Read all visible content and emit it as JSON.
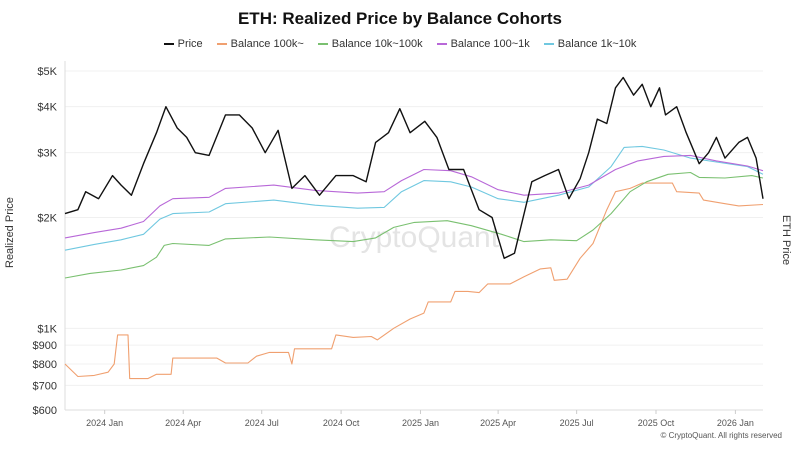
{
  "chart_data": {
    "type": "line",
    "title": "ETH: Realized Price by Balance Cohorts",
    "ylabel": "Realized Price",
    "y2label": "ETH Price",
    "yscale": "log",
    "ylim": [
      600,
      5000
    ],
    "yticks": [
      "$600",
      "$700",
      "$800",
      "$900",
      "$1K",
      "$2K",
      "$3K",
      "$4K",
      "$5K"
    ],
    "ytick_values": [
      600,
      700,
      800,
      900,
      1000,
      2000,
      3000,
      4000,
      5000
    ],
    "xticks": [
      "2024 Jan",
      "2024 Apr",
      "2024 Jul",
      "2024 Oct",
      "2025 Jan",
      "2025 Apr",
      "2025 Jul",
      "2025 Oct",
      "2026 Jan"
    ],
    "xtick_dates": [
      "2024-01-01",
      "2024-04-01",
      "2024-07-01",
      "2024-10-01",
      "2025-01-01",
      "2025-04-01",
      "2025-07-01",
      "2025-10-01",
      "2026-01-01"
    ],
    "xlim": [
      "2023-11-16",
      "2026-02-02"
    ],
    "grid": true,
    "legend_position": "top",
    "watermark": "CryptoQuant",
    "credit": "© CryptoQuant. All rights reserved",
    "series": [
      {
        "name": "Price",
        "color": "#111111",
        "points": [
          [
            "2023-11-16",
            2050
          ],
          [
            "2023-12-01",
            2100
          ],
          [
            "2023-12-10",
            2350
          ],
          [
            "2023-12-25",
            2250
          ],
          [
            "2024-01-10",
            2600
          ],
          [
            "2024-01-20",
            2450
          ],
          [
            "2024-02-01",
            2300
          ],
          [
            "2024-02-15",
            2800
          ],
          [
            "2024-03-01",
            3400
          ],
          [
            "2024-03-12",
            4000
          ],
          [
            "2024-03-25",
            3500
          ],
          [
            "2024-04-05",
            3300
          ],
          [
            "2024-04-15",
            3000
          ],
          [
            "2024-05-01",
            2950
          ],
          [
            "2024-05-20",
            3800
          ],
          [
            "2024-06-05",
            3800
          ],
          [
            "2024-06-20",
            3500
          ],
          [
            "2024-07-05",
            3000
          ],
          [
            "2024-07-20",
            3450
          ],
          [
            "2024-08-05",
            2400
          ],
          [
            "2024-08-20",
            2600
          ],
          [
            "2024-09-06",
            2300
          ],
          [
            "2024-09-25",
            2600
          ],
          [
            "2024-10-15",
            2600
          ],
          [
            "2024-10-30",
            2500
          ],
          [
            "2024-11-10",
            3200
          ],
          [
            "2024-11-25",
            3400
          ],
          [
            "2024-12-08",
            3950
          ],
          [
            "2024-12-20",
            3400
          ],
          [
            "2025-01-06",
            3650
          ],
          [
            "2025-01-20",
            3300
          ],
          [
            "2025-02-03",
            2700
          ],
          [
            "2025-02-20",
            2700
          ],
          [
            "2025-03-10",
            2100
          ],
          [
            "2025-03-25",
            2000
          ],
          [
            "2025-04-08",
            1550
          ],
          [
            "2025-04-20",
            1600
          ],
          [
            "2025-05-10",
            2500
          ],
          [
            "2025-05-25",
            2600
          ],
          [
            "2025-06-10",
            2700
          ],
          [
            "2025-06-22",
            2250
          ],
          [
            "2025-07-05",
            2550
          ],
          [
            "2025-07-15",
            3000
          ],
          [
            "2025-07-25",
            3700
          ],
          [
            "2025-08-05",
            3600
          ],
          [
            "2025-08-15",
            4500
          ],
          [
            "2025-08-24",
            4800
          ],
          [
            "2025-09-05",
            4300
          ],
          [
            "2025-09-15",
            4600
          ],
          [
            "2025-09-25",
            4000
          ],
          [
            "2025-10-05",
            4500
          ],
          [
            "2025-10-12",
            3800
          ],
          [
            "2025-10-25",
            4000
          ],
          [
            "2025-11-05",
            3400
          ],
          [
            "2025-11-20",
            2800
          ],
          [
            "2025-12-01",
            3000
          ],
          [
            "2025-12-10",
            3300
          ],
          [
            "2025-12-20",
            2900
          ],
          [
            "2026-01-05",
            3200
          ],
          [
            "2026-01-15",
            3300
          ],
          [
            "2026-01-25",
            2900
          ],
          [
            "2026-02-02",
            2250
          ]
        ]
      },
      {
        "name": "Balance 100k~",
        "color": "#f0a070",
        "points": [
          [
            "2023-11-16",
            800
          ],
          [
            "2023-12-01",
            740
          ],
          [
            "2023-12-20",
            745
          ],
          [
            "2024-01-05",
            760
          ],
          [
            "2024-01-12",
            800
          ],
          [
            "2024-01-16",
            960
          ],
          [
            "2024-01-28",
            960
          ],
          [
            "2024-01-30",
            730
          ],
          [
            "2024-02-20",
            730
          ],
          [
            "2024-03-01",
            750
          ],
          [
            "2024-03-18",
            750
          ],
          [
            "2024-03-20",
            830
          ],
          [
            "2024-05-10",
            830
          ],
          [
            "2024-05-20",
            805
          ],
          [
            "2024-06-15",
            805
          ],
          [
            "2024-06-25",
            840
          ],
          [
            "2024-07-10",
            860
          ],
          [
            "2024-08-01",
            860
          ],
          [
            "2024-08-05",
            800
          ],
          [
            "2024-08-08",
            880
          ],
          [
            "2024-09-20",
            880
          ],
          [
            "2024-09-25",
            960
          ],
          [
            "2024-10-15",
            945
          ],
          [
            "2024-11-05",
            950
          ],
          [
            "2024-11-12",
            930
          ],
          [
            "2024-12-01",
            1000
          ],
          [
            "2024-12-20",
            1060
          ],
          [
            "2025-01-05",
            1100
          ],
          [
            "2025-01-10",
            1180
          ],
          [
            "2025-02-05",
            1180
          ],
          [
            "2025-02-10",
            1260
          ],
          [
            "2025-02-25",
            1260
          ],
          [
            "2025-03-10",
            1250
          ],
          [
            "2025-03-20",
            1320
          ],
          [
            "2025-04-15",
            1320
          ],
          [
            "2025-05-01",
            1380
          ],
          [
            "2025-05-20",
            1450
          ],
          [
            "2025-06-01",
            1460
          ],
          [
            "2025-06-05",
            1350
          ],
          [
            "2025-06-20",
            1360
          ],
          [
            "2025-07-05",
            1550
          ],
          [
            "2025-07-20",
            1700
          ],
          [
            "2025-08-05",
            2100
          ],
          [
            "2025-08-15",
            2350
          ],
          [
            "2025-09-01",
            2400
          ],
          [
            "2025-09-15",
            2480
          ],
          [
            "2025-10-20",
            2480
          ],
          [
            "2025-10-25",
            2350
          ],
          [
            "2025-11-20",
            2330
          ],
          [
            "2025-11-25",
            2230
          ],
          [
            "2025-12-20",
            2180
          ],
          [
            "2026-01-05",
            2150
          ],
          [
            "2026-02-02",
            2170
          ]
        ]
      },
      {
        "name": "Balance 10k~100k",
        "color": "#7ac070",
        "points": [
          [
            "2023-11-16",
            1370
          ],
          [
            "2023-12-15",
            1410
          ],
          [
            "2024-01-20",
            1440
          ],
          [
            "2024-02-15",
            1480
          ],
          [
            "2024-03-01",
            1560
          ],
          [
            "2024-03-10",
            1680
          ],
          [
            "2024-03-20",
            1700
          ],
          [
            "2024-05-01",
            1680
          ],
          [
            "2024-05-20",
            1750
          ],
          [
            "2024-07-10",
            1770
          ],
          [
            "2024-09-01",
            1740
          ],
          [
            "2024-10-15",
            1720
          ],
          [
            "2024-11-10",
            1760
          ],
          [
            "2024-12-01",
            1880
          ],
          [
            "2024-12-25",
            1940
          ],
          [
            "2025-02-01",
            1960
          ],
          [
            "2025-03-01",
            1900
          ],
          [
            "2025-04-05",
            1800
          ],
          [
            "2025-05-01",
            1720
          ],
          [
            "2025-06-01",
            1740
          ],
          [
            "2025-07-01",
            1730
          ],
          [
            "2025-07-20",
            1850
          ],
          [
            "2025-08-10",
            2050
          ],
          [
            "2025-09-01",
            2350
          ],
          [
            "2025-09-20",
            2500
          ],
          [
            "2025-10-15",
            2620
          ],
          [
            "2025-11-10",
            2650
          ],
          [
            "2025-11-20",
            2570
          ],
          [
            "2025-12-20",
            2560
          ],
          [
            "2026-01-20",
            2600
          ],
          [
            "2026-02-02",
            2560
          ]
        ]
      },
      {
        "name": "Balance 100~1k",
        "color": "#b868d8",
        "points": [
          [
            "2023-11-16",
            1760
          ],
          [
            "2023-12-20",
            1820
          ],
          [
            "2024-01-20",
            1870
          ],
          [
            "2024-02-15",
            1950
          ],
          [
            "2024-03-05",
            2150
          ],
          [
            "2024-03-20",
            2250
          ],
          [
            "2024-05-01",
            2270
          ],
          [
            "2024-05-20",
            2400
          ],
          [
            "2024-07-15",
            2450
          ],
          [
            "2024-09-01",
            2370
          ],
          [
            "2024-10-20",
            2330
          ],
          [
            "2024-11-20",
            2350
          ],
          [
            "2024-12-10",
            2520
          ],
          [
            "2025-01-05",
            2700
          ],
          [
            "2025-02-05",
            2680
          ],
          [
            "2025-03-01",
            2580
          ],
          [
            "2025-04-01",
            2380
          ],
          [
            "2025-05-01",
            2300
          ],
          [
            "2025-06-10",
            2330
          ],
          [
            "2025-07-15",
            2450
          ],
          [
            "2025-08-15",
            2700
          ],
          [
            "2025-09-10",
            2850
          ],
          [
            "2025-10-10",
            2930
          ],
          [
            "2025-11-10",
            2950
          ],
          [
            "2025-12-10",
            2850
          ],
          [
            "2026-01-15",
            2760
          ],
          [
            "2026-02-02",
            2680
          ]
        ]
      },
      {
        "name": "Balance 1k~10k",
        "color": "#70c8e0",
        "points": [
          [
            "2023-11-16",
            1630
          ],
          [
            "2023-12-20",
            1690
          ],
          [
            "2024-01-20",
            1740
          ],
          [
            "2024-02-15",
            1800
          ],
          [
            "2024-03-05",
            1980
          ],
          [
            "2024-03-20",
            2050
          ],
          [
            "2024-05-01",
            2070
          ],
          [
            "2024-05-20",
            2180
          ],
          [
            "2024-07-15",
            2230
          ],
          [
            "2024-09-01",
            2160
          ],
          [
            "2024-10-20",
            2120
          ],
          [
            "2024-11-20",
            2130
          ],
          [
            "2024-12-10",
            2350
          ],
          [
            "2025-01-05",
            2520
          ],
          [
            "2025-02-05",
            2500
          ],
          [
            "2025-03-01",
            2420
          ],
          [
            "2025-04-01",
            2250
          ],
          [
            "2025-05-01",
            2200
          ],
          [
            "2025-06-10",
            2300
          ],
          [
            "2025-07-15",
            2420
          ],
          [
            "2025-08-10",
            2750
          ],
          [
            "2025-08-25",
            3100
          ],
          [
            "2025-09-15",
            3120
          ],
          [
            "2025-10-10",
            3050
          ],
          [
            "2025-11-10",
            2900
          ],
          [
            "2025-12-10",
            2830
          ],
          [
            "2026-01-15",
            2750
          ],
          [
            "2026-02-02",
            2620
          ]
        ]
      }
    ]
  }
}
